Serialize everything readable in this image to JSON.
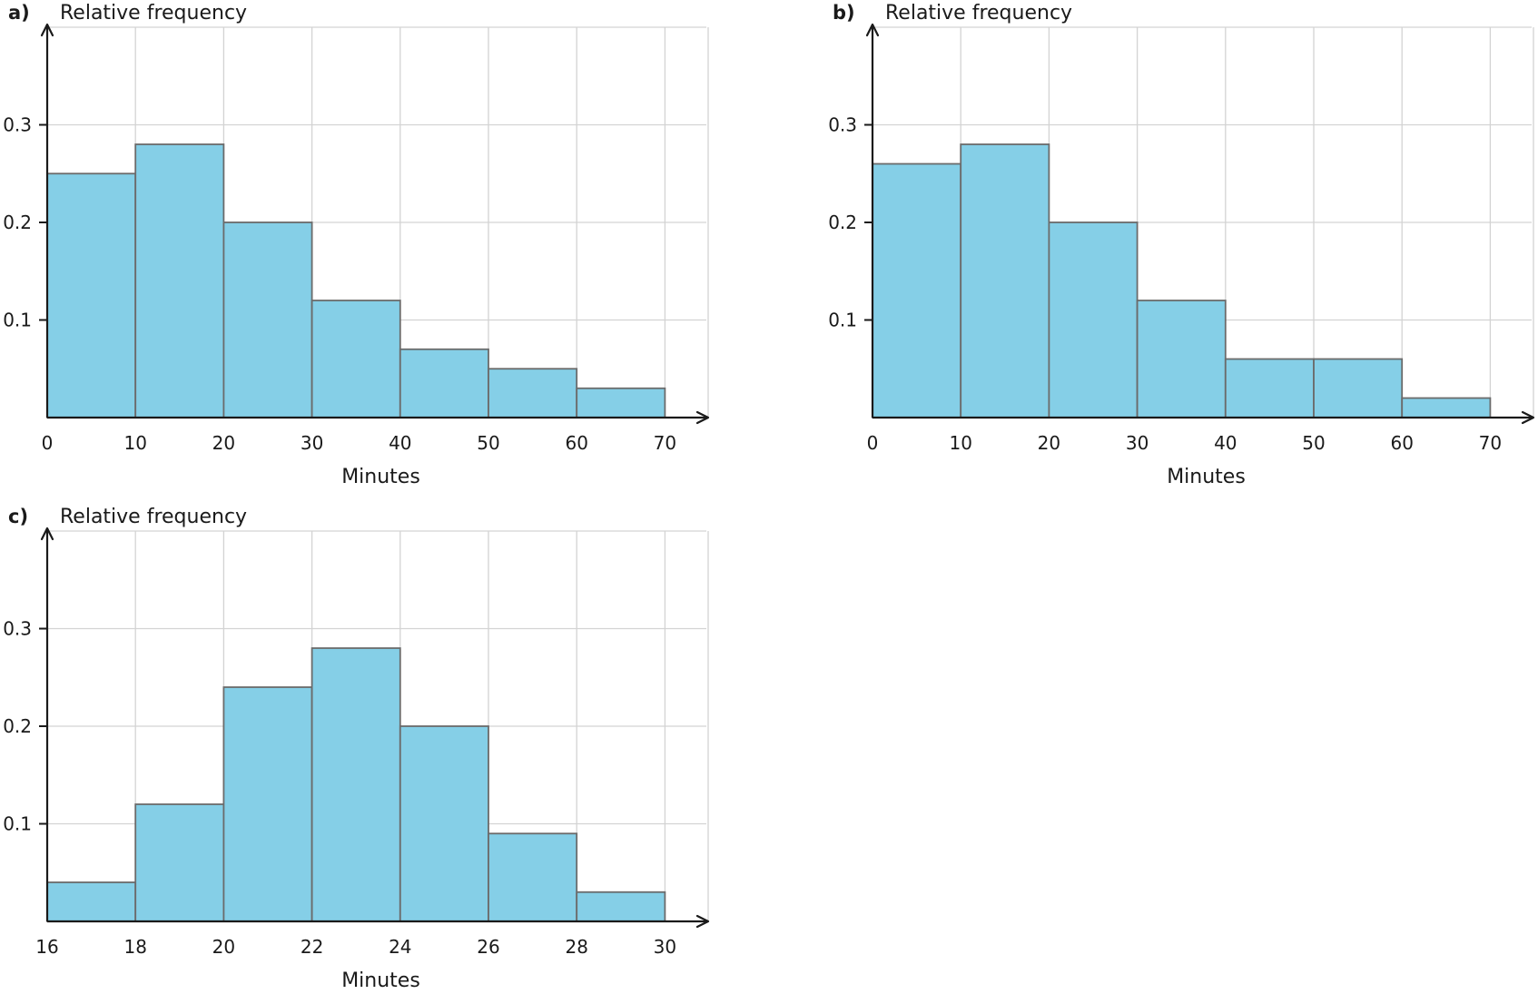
{
  "chart_data": [
    {
      "panel_label": "a)",
      "type": "bar",
      "ylabel": "Relative frequency",
      "xlabel": "Minutes",
      "x_ticks": [
        0,
        10,
        20,
        30,
        40,
        50,
        60,
        70
      ],
      "y_ticks": [
        0.1,
        0.2,
        0.3
      ],
      "xlim": [
        0,
        75
      ],
      "ylim": [
        0,
        0.4
      ],
      "grid": true,
      "bins": [
        {
          "start": 0,
          "end": 10,
          "value": 0.25
        },
        {
          "start": 10,
          "end": 20,
          "value": 0.28
        },
        {
          "start": 20,
          "end": 30,
          "value": 0.2
        },
        {
          "start": 30,
          "end": 40,
          "value": 0.12
        },
        {
          "start": 40,
          "end": 50,
          "value": 0.07
        },
        {
          "start": 50,
          "end": 60,
          "value": 0.05
        },
        {
          "start": 60,
          "end": 70,
          "value": 0.03
        }
      ]
    },
    {
      "panel_label": "b)",
      "type": "bar",
      "ylabel": "Relative frequency",
      "xlabel": "Minutes",
      "x_ticks": [
        0,
        10,
        20,
        30,
        40,
        50,
        60,
        70
      ],
      "y_ticks": [
        0.1,
        0.2,
        0.3
      ],
      "xlim": [
        0,
        75
      ],
      "ylim": [
        0,
        0.4
      ],
      "grid": true,
      "bins": [
        {
          "start": 0,
          "end": 10,
          "value": 0.26
        },
        {
          "start": 10,
          "end": 20,
          "value": 0.28
        },
        {
          "start": 20,
          "end": 30,
          "value": 0.2
        },
        {
          "start": 30,
          "end": 40,
          "value": 0.12
        },
        {
          "start": 40,
          "end": 50,
          "value": 0.06
        },
        {
          "start": 50,
          "end": 60,
          "value": 0.06
        },
        {
          "start": 60,
          "end": 70,
          "value": 0.02
        }
      ]
    },
    {
      "panel_label": "c)",
      "type": "bar",
      "ylabel": "Relative frequency",
      "xlabel": "Minutes",
      "x_ticks": [
        16,
        18,
        20,
        22,
        24,
        26,
        28,
        30
      ],
      "y_ticks": [
        0.1,
        0.2,
        0.3
      ],
      "xlim": [
        16,
        31
      ],
      "ylim": [
        0,
        0.4
      ],
      "grid": true,
      "bins": [
        {
          "start": 16,
          "end": 18,
          "value": 0.04
        },
        {
          "start": 18,
          "end": 20,
          "value": 0.12
        },
        {
          "start": 20,
          "end": 22,
          "value": 0.24
        },
        {
          "start": 22,
          "end": 24,
          "value": 0.28
        },
        {
          "start": 24,
          "end": 26,
          "value": 0.2
        },
        {
          "start": 26,
          "end": 28,
          "value": 0.09
        },
        {
          "start": 28,
          "end": 30,
          "value": 0.03
        }
      ]
    }
  ],
  "colors": {
    "bar_fill": "#85cfe7",
    "bar_stroke": "#6b6b6b",
    "grid": "#d3d3d3",
    "axis": "#1a1a1a"
  }
}
